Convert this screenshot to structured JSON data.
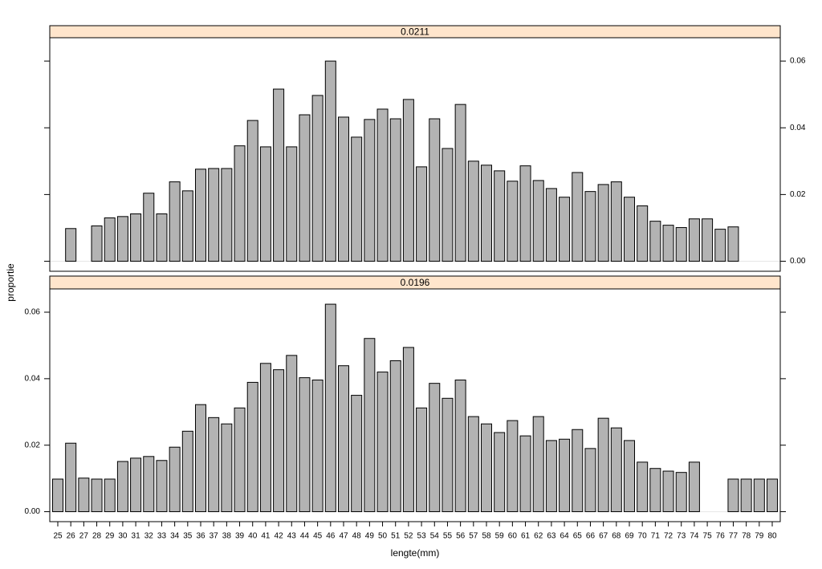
{
  "chart_data": {
    "type": "bar",
    "xlabel": "lengte(mm)",
    "ylabel": "proportie",
    "categories": [
      "25",
      "26",
      "27",
      "28",
      "29",
      "30",
      "31",
      "32",
      "33",
      "34",
      "35",
      "36",
      "37",
      "38",
      "39",
      "40",
      "41",
      "42",
      "43",
      "44",
      "45",
      "46",
      "47",
      "48",
      "49",
      "50",
      "51",
      "52",
      "53",
      "54",
      "55",
      "56",
      "57",
      "58",
      "59",
      "60",
      "61",
      "62",
      "63",
      "64",
      "65",
      "66",
      "67",
      "68",
      "69",
      "70",
      "71",
      "72",
      "73",
      "74",
      "75",
      "76",
      "77",
      "78",
      "79",
      "80"
    ],
    "color": "#b3b3b3",
    "ylim": [
      -0.003,
      0.067
    ],
    "yticks": [
      {
        "value": 0,
        "label": "0.00"
      },
      {
        "value": 0.02,
        "label": "0.02"
      },
      {
        "value": 0.04,
        "label": "0.04"
      },
      {
        "value": 0.06,
        "label": "0.06"
      }
    ],
    "panels": [
      {
        "strip": "0.0211",
        "values": [
          null,
          0.0098,
          null,
          0.0106,
          0.013,
          0.0134,
          0.0142,
          0.0204,
          0.0142,
          0.0238,
          0.0211,
          0.0276,
          0.0278,
          0.0278,
          0.0346,
          0.0422,
          0.0343,
          0.0516,
          0.0343,
          0.0439,
          0.0497,
          0.06,
          0.0432,
          0.0372,
          0.0425,
          0.0456,
          0.0427,
          0.0485,
          0.0283,
          0.0427,
          0.0338,
          0.047,
          0.03,
          0.0288,
          0.0271,
          0.024,
          0.0286,
          0.0242,
          0.0218,
          0.0192,
          0.0266,
          0.0209,
          0.023,
          0.0238,
          0.0192,
          0.0166,
          0.012,
          0.0108,
          0.0101,
          0.0127,
          0.0127,
          0.0096,
          0.0103,
          null,
          null,
          null
        ]
      },
      {
        "strip": "0.0196",
        "values": [
          0.0098,
          0.0206,
          0.0101,
          0.0098,
          0.0098,
          0.0151,
          0.0161,
          0.0166,
          0.0154,
          0.0194,
          0.0242,
          0.0322,
          0.0283,
          0.0264,
          0.0312,
          0.0389,
          0.0446,
          0.0427,
          0.047,
          0.0403,
          0.0396,
          0.0624,
          0.0439,
          0.035,
          0.0521,
          0.042,
          0.0454,
          0.0494,
          0.0312,
          0.0386,
          0.0341,
          0.0396,
          0.0286,
          0.0264,
          0.0238,
          0.0274,
          0.0228,
          0.0286,
          0.0214,
          0.0218,
          0.0247,
          0.019,
          0.0281,
          0.0252,
          0.0214,
          0.0149,
          0.013,
          0.0122,
          0.0118,
          0.0149,
          null,
          null,
          0.0098,
          0.0098,
          0.0098,
          0.0098
        ]
      }
    ]
  }
}
